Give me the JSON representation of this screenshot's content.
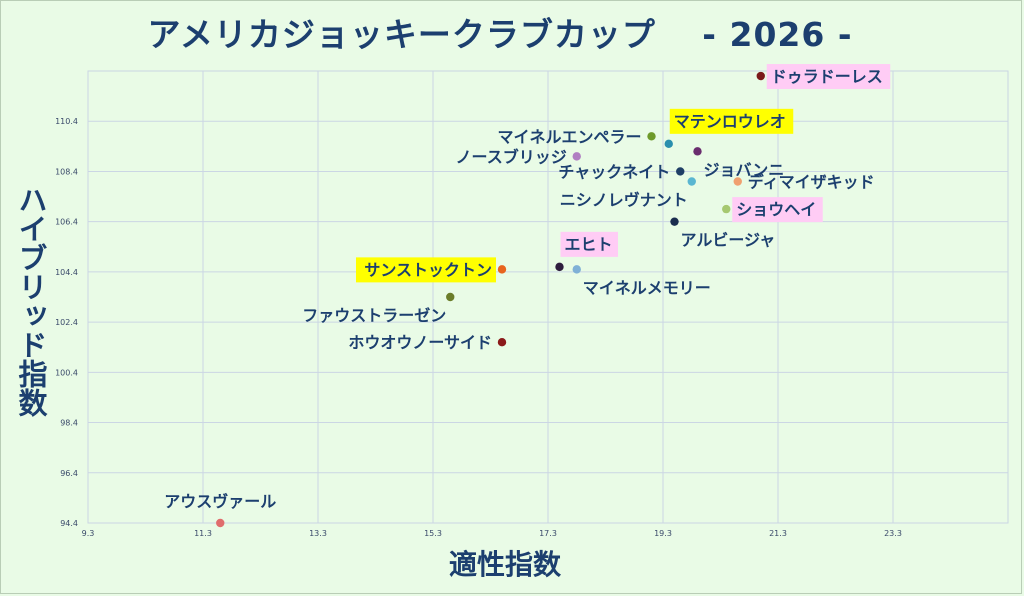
{
  "chart_data": {
    "type": "scatter",
    "title": "アメリカジョッキークラブカップ　 - 2026 -",
    "xlabel": "適性指数",
    "ylabel": "ハイブリッド指数",
    "xlim": [
      9.3,
      25.3
    ],
    "ylim": [
      94.4,
      112.4
    ],
    "xticks": [
      9.3,
      11.3,
      13.3,
      15.3,
      17.3,
      19.3,
      21.3,
      23.3
    ],
    "yticks": [
      94.4,
      96.4,
      98.4,
      100.4,
      102.4,
      104.4,
      106.4,
      108.4,
      110.4
    ],
    "xtick_labels": [
      "9.3",
      "11.3",
      "13.3",
      "15.3",
      "17.3",
      "19.3",
      "21.3",
      "23.3"
    ],
    "ytick_labels": [
      "94.4",
      "96.4",
      "98.4",
      "100.4",
      "102.4",
      "104.4",
      "106.4",
      "108.4",
      "110.4"
    ],
    "grid": true,
    "highlight_colors": {
      "yellow": "#ffff00",
      "pink": "#ffccf5"
    },
    "points": [
      {
        "label": "ドゥラドーレス",
        "x": 21.0,
        "y": 112.2,
        "color": "#7a1a1a",
        "highlight": "pink",
        "anchor": "right"
      },
      {
        "label": "マイネルエンペラー",
        "x": 19.1,
        "y": 109.8,
        "color": "#6e9a2a",
        "highlight": "none",
        "anchor": "left"
      },
      {
        "label": "マテンロウレオ",
        "x": 19.4,
        "y": 109.5,
        "color": "#2a8fae",
        "highlight": "yellow",
        "anchor": "above-right"
      },
      {
        "label": "ジョバンニ",
        "x": 19.9,
        "y": 109.2,
        "color": "#6a2d6e",
        "highlight": "none",
        "anchor": "below-right"
      },
      {
        "label": "ノースブリッジ",
        "x": 17.8,
        "y": 109.0,
        "color": "#b07fc2",
        "highlight": "none",
        "anchor": "left"
      },
      {
        "label": "チャックネイト",
        "x": 19.6,
        "y": 108.4,
        "color": "#1f3f66",
        "highlight": "none",
        "anchor": "left"
      },
      {
        "label": "ニシノレヴナント",
        "x": 19.8,
        "y": 108.0,
        "color": "#5ab6d1",
        "highlight": "none",
        "anchor": "below-left"
      },
      {
        "label": "ディマイザキッド",
        "x": 20.6,
        "y": 108.0,
        "color": "#f0a070",
        "highlight": "none",
        "anchor": "right"
      },
      {
        "label": "ショウヘイ",
        "x": 20.4,
        "y": 106.9,
        "color": "#a6c870",
        "highlight": "pink",
        "anchor": "right"
      },
      {
        "label": "アルビージャ",
        "x": 19.5,
        "y": 106.4,
        "color": "#1a2d4e",
        "highlight": "none",
        "anchor": "below-right"
      },
      {
        "label": "エヒト",
        "x": 17.5,
        "y": 104.6,
        "color": "#2e1d3e",
        "highlight": "pink",
        "anchor": "above-right"
      },
      {
        "label": "マイネルメモリー",
        "x": 17.8,
        "y": 104.5,
        "color": "#7fb0d6",
        "highlight": "none",
        "anchor": "below-right"
      },
      {
        "label": "サンストックトン",
        "x": 16.5,
        "y": 104.5,
        "color": "#e8641e",
        "highlight": "yellow",
        "anchor": "left"
      },
      {
        "label": "ファウストラーゼン",
        "x": 15.6,
        "y": 103.4,
        "color": "#6b7d2a",
        "highlight": "none",
        "anchor": "below-left"
      },
      {
        "label": "ホウオウノーサイド",
        "x": 16.5,
        "y": 101.6,
        "color": "#8b1a1a",
        "highlight": "none",
        "anchor": "left"
      },
      {
        "label": "アウスヴァール",
        "x": 11.6,
        "y": 94.4,
        "color": "#e06d6d",
        "highlight": "none",
        "anchor": "above"
      }
    ]
  }
}
